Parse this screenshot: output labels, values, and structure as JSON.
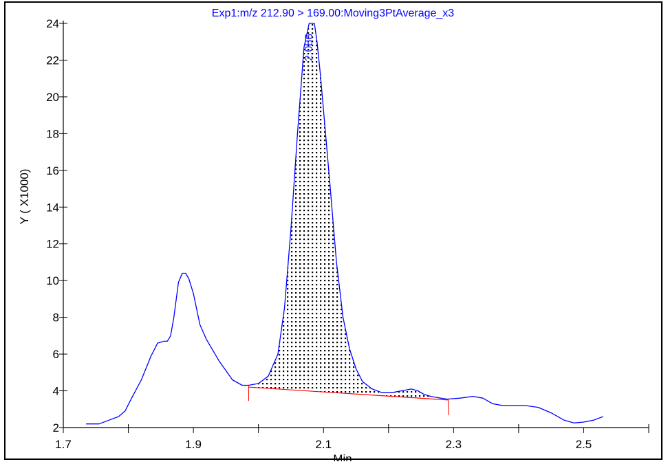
{
  "chart_data": {
    "type": "line",
    "title": "Exp1:m/z 212.90 > 169.00:Moving3PtAverage_x3",
    "xlabel": "Min",
    "ylabel": "Y ( X1000)",
    "xlim": [
      1.7,
      2.6
    ],
    "ylim": [
      2,
      24
    ],
    "x_ticks": [
      1.7,
      1.9,
      2.1,
      2.3,
      2.5
    ],
    "x_tick_labels": [
      "1.7",
      "1.9",
      "2.1",
      "2.3",
      "2.5"
    ],
    "x_minor_ticks": [
      1.8,
      2.0,
      2.2,
      2.4,
      2.6
    ],
    "y_ticks": [
      2,
      4,
      6,
      8,
      10,
      12,
      14,
      16,
      18,
      20,
      22,
      24
    ],
    "y_tick_labels": [
      "2",
      "4",
      "6",
      "8",
      "10",
      "12",
      "14",
      "16",
      "18",
      "20",
      "22",
      "24"
    ],
    "grid": false,
    "series": [
      {
        "color": "#0000ff",
        "x": [
          1.735,
          1.755,
          1.77,
          1.785,
          1.795,
          1.805,
          1.82,
          1.835,
          1.845,
          1.855,
          1.86,
          1.865,
          1.87,
          1.877,
          1.883,
          1.888,
          1.893,
          1.9,
          1.91,
          1.92,
          1.94,
          1.96,
          1.975,
          1.985,
          2.0,
          2.015,
          2.03,
          2.04,
          2.05,
          2.06,
          2.07,
          2.078,
          2.083,
          2.086,
          2.09,
          2.095,
          2.1,
          2.11,
          2.12,
          2.13,
          2.14,
          2.15,
          2.16,
          2.175,
          2.19,
          2.205,
          2.22,
          2.235,
          2.245,
          2.255,
          2.265,
          2.28,
          2.29,
          2.31,
          2.33,
          2.345,
          2.36,
          2.375,
          2.39,
          2.41,
          2.43,
          2.45,
          2.47,
          2.485,
          2.5,
          2.515,
          2.53
        ],
        "y": [
          2.2,
          2.2,
          2.4,
          2.6,
          2.9,
          3.6,
          4.6,
          5.9,
          6.6,
          6.7,
          6.7,
          7.0,
          8.0,
          9.9,
          10.4,
          10.4,
          10.1,
          9.3,
          7.6,
          6.8,
          5.6,
          4.6,
          4.3,
          4.3,
          4.4,
          4.8,
          6.0,
          8.5,
          12.8,
          18.0,
          22.7,
          24.0,
          24.0,
          24.0,
          23.0,
          21.3,
          19.3,
          15.2,
          11.0,
          8.0,
          6.3,
          5.2,
          4.5,
          4.1,
          3.9,
          3.9,
          4.0,
          4.1,
          4.0,
          3.8,
          3.7,
          3.6,
          3.55,
          3.6,
          3.7,
          3.6,
          3.3,
          3.2,
          3.2,
          3.2,
          3.1,
          2.8,
          2.4,
          2.25,
          2.3,
          2.4,
          2.6
        ]
      }
    ],
    "peak": {
      "label": "2.086",
      "apex_x": 2.086,
      "apex_y": 24.0,
      "start_x": 1.985,
      "end_x": 2.292,
      "baseline_start_y": 4.2,
      "baseline_end_y": 3.5,
      "baseline_color": "#ff0000",
      "fill_pattern": "dotted"
    }
  }
}
